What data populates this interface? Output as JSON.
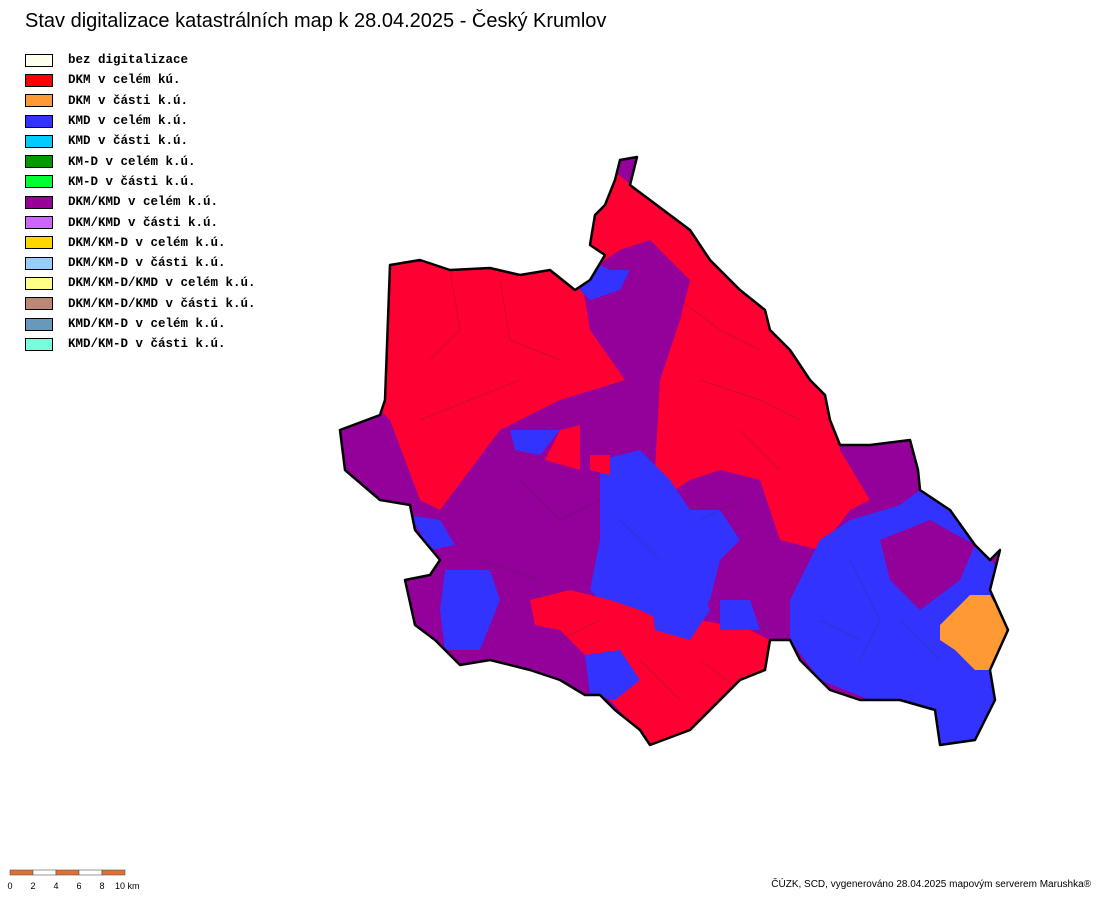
{
  "title": "Stav digitalizace katastrálních map k 28.04.2025 - Český Krumlov",
  "legend": {
    "items": [
      {
        "label": "bez digitalizace",
        "color": "#ffffee"
      },
      {
        "label": "DKM v celém kú.",
        "color": "#ff0000"
      },
      {
        "label": "DKM v části k.ú.",
        "color": "#ff9933"
      },
      {
        "label": "KMD v celém k.ú.",
        "color": "#3333ff"
      },
      {
        "label": "KMD v části k.ú.",
        "color": "#00ccff"
      },
      {
        "label": "KM-D v celém k.ú.",
        "color": "#009900"
      },
      {
        "label": "KM-D v části k.ú.",
        "color": "#00ff33"
      },
      {
        "label": "DKM/KMD v celém k.ú.",
        "color": "#990099"
      },
      {
        "label": "DKM/KMD v části k.ú.",
        "color": "#cc66ff"
      },
      {
        "label": "DKM/KM-D v celém k.ú.",
        "color": "#ffd700"
      },
      {
        "label": "DKM/KM-D v části k.ú.",
        "color": "#99ccff"
      },
      {
        "label": "DKM/KM-D/KMD v celém k.ú.",
        "color": "#ffff88"
      },
      {
        "label": "DKM/KM-D/KMD v části k.ú.",
        "color": "#bb8877"
      },
      {
        "label": "KMD/KM-D v celém k.ú.",
        "color": "#6699bb"
      },
      {
        "label": "KMD/KM-D v části k.ú.",
        "color": "#77ffdd"
      }
    ]
  },
  "scale_bar": {
    "labels": [
      "0",
      "2",
      "4",
      "6",
      "8",
      "10 km"
    ]
  },
  "credit": "ČÚZK, SCD, vygenerováno 28.04.2025 mapovým serverem Marushka®"
}
